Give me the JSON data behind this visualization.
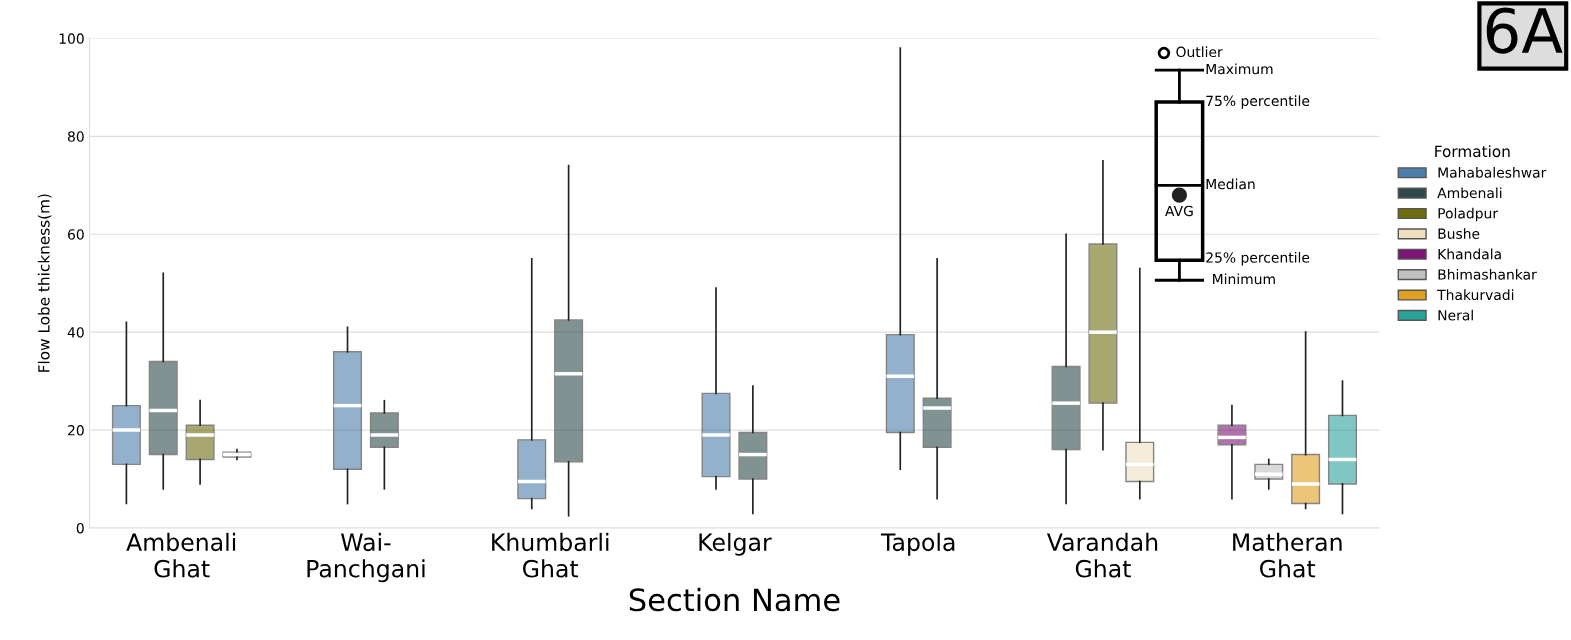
{
  "chart_data": {
    "type": "box",
    "xlabel": "Section Name",
    "ylabel": "Flow Lobe thickness(m)",
    "legend_title": "Formation",
    "categories": [
      "Ambenali\nGhat",
      "Wai-\nPanchgani",
      "Khumbarli\nGhat",
      "Kelgar",
      "Tapola",
      "Varandah\nGhat",
      "Matheran\nGhat"
    ],
    "series": [
      {
        "name": "Mahabaleshwar",
        "color": "#4c7eab",
        "boxes": [
          {
            "low": 5,
            "q1": 13,
            "median": 20,
            "q3": 25,
            "high": 42
          },
          {
            "low": 5,
            "q1": 12,
            "median": 25,
            "q3": 36,
            "high": 41
          },
          {
            "low": 4,
            "q1": 6,
            "median": 9.5,
            "q3": 18,
            "high": 55
          },
          {
            "low": 8,
            "q1": 10.5,
            "median": 19,
            "q3": 27.5,
            "high": 49
          },
          {
            "low": 12,
            "q1": 19.5,
            "median": 31,
            "q3": 39.5,
            "high": 98
          },
          null,
          null
        ]
      },
      {
        "name": "Ambenali",
        "color": "#2f4a4a",
        "boxes": [
          {
            "low": 8,
            "q1": 15,
            "median": 24,
            "q3": 34,
            "high": 52
          },
          {
            "low": 8,
            "q1": 16.5,
            "median": 19,
            "q3": 23.5,
            "high": 26
          },
          {
            "low": 2.5,
            "q1": 13.5,
            "median": 31.5,
            "q3": 42.5,
            "high": 74
          },
          {
            "low": 3,
            "q1": 10,
            "median": 15,
            "q3": 19.5,
            "high": 29
          },
          {
            "low": 6,
            "q1": 16.5,
            "median": 24.5,
            "q3": 26.5,
            "high": 55
          },
          {
            "low": 5,
            "q1": 16,
            "median": 25.5,
            "q3": 33,
            "high": 60
          },
          null
        ]
      },
      {
        "name": "Poladpur",
        "color": "#6e6e10",
        "boxes": [
          {
            "low": 9,
            "q1": 14,
            "median": 19,
            "q3": 21,
            "high": 26
          },
          null,
          null,
          null,
          null,
          {
            "low": 16,
            "q1": 25.5,
            "median": 40,
            "q3": 58,
            "high": 75
          },
          null
        ]
      },
      {
        "name": "Bushe",
        "color": "#eedfbf",
        "boxes": [
          {
            "low": 14,
            "q1": 14.5,
            "median": 15,
            "q3": 15.5,
            "high": 16
          },
          null,
          null,
          null,
          null,
          {
            "low": 6,
            "q1": 9.5,
            "median": 13,
            "q3": 17.5,
            "high": 53
          },
          null
        ]
      },
      {
        "name": "Khandala",
        "color": "#7d1478",
        "boxes": [
          null,
          null,
          null,
          null,
          null,
          null,
          {
            "low": 6,
            "q1": 17,
            "median": 18.5,
            "q3": 21,
            "high": 25
          }
        ]
      },
      {
        "name": "Bhimashankar",
        "color": "#c0c0c0",
        "boxes": [
          null,
          null,
          null,
          null,
          null,
          null,
          {
            "low": 8,
            "q1": 10,
            "median": 11,
            "q3": 13,
            "high": 14
          }
        ]
      },
      {
        "name": "Thakurvadi",
        "color": "#e0a020",
        "boxes": [
          null,
          null,
          null,
          null,
          null,
          null,
          {
            "low": 4,
            "q1": 5,
            "median": 9,
            "q3": 15,
            "high": 40
          }
        ]
      },
      {
        "name": "Neral",
        "color": "#2aa39a",
        "boxes": [
          null,
          null,
          null,
          null,
          null,
          null,
          {
            "low": 3,
            "q1": 9,
            "median": 14,
            "q3": 23,
            "high": 30
          }
        ]
      }
    ],
    "ylim": [
      0,
      100
    ],
    "yticks": [
      0,
      20,
      40,
      60,
      80,
      100
    ],
    "grid": "y",
    "legend": "right",
    "annotations": [
      "Outlier",
      "Maximum",
      "75% percentile",
      "Median",
      "AVG",
      "25% percentile",
      "Minimum",
      "6A"
    ]
  }
}
